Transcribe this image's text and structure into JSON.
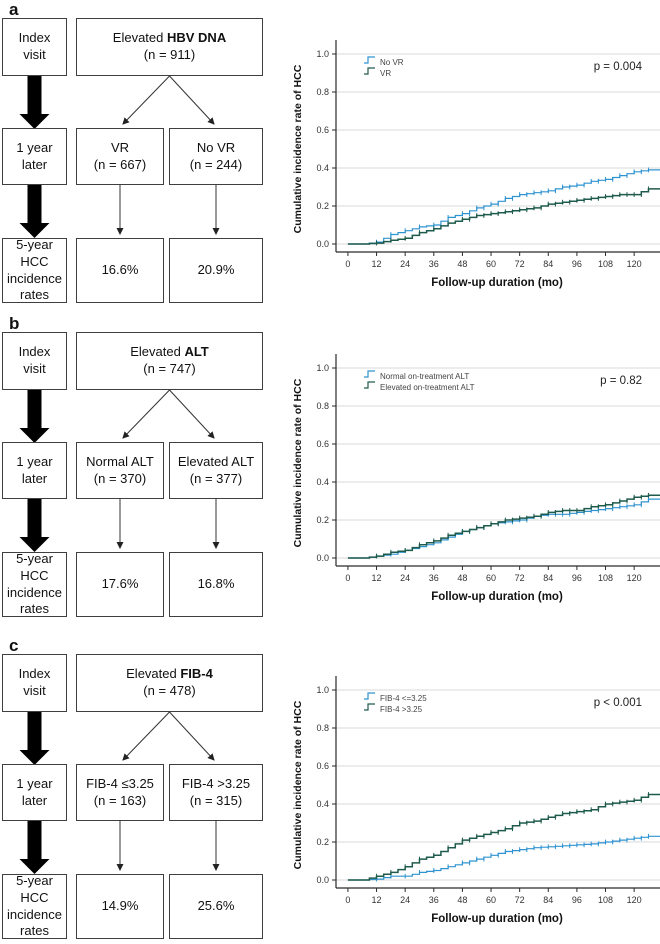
{
  "figure_background": "#ffffff",
  "colors": {
    "curve_blue": "#2f93d2",
    "curve_green": "#1e5b4c",
    "gridline": "#d9d9d9",
    "axis": "#2a2a2a",
    "box_border": "#3f3f3f",
    "arrow_black": "#000000"
  },
  "panels": [
    {
      "label": "a",
      "flowchart": {
        "index_visit": "Index\nvisit",
        "one_year_later": "1 year\nlater",
        "outcome_label": "5-year\nHCC\nincidence\nrates",
        "top_box": {
          "prefix": "Elevated ",
          "bold": "HBV DNA",
          "n": "(n = 911)"
        },
        "left_branch": {
          "title": "VR",
          "n": "(n = 667)"
        },
        "right_branch": {
          "title": "No VR",
          "n": "(n = 244)"
        },
        "left_rate": "16.6%",
        "right_rate": "20.9%"
      }
    },
    {
      "label": "b",
      "flowchart": {
        "index_visit": "Index\nvisit",
        "one_year_later": "1 year\nlater",
        "outcome_label": "5-year\nHCC\nincidence\nrates",
        "top_box": {
          "prefix": "Elevated ",
          "bold": "ALT",
          "n": "(n = 747)"
        },
        "left_branch": {
          "title": "Normal ALT",
          "n": "(n = 370)"
        },
        "right_branch": {
          "title": "Elevated ALT",
          "n": "(n = 377)"
        },
        "left_rate": "17.6%",
        "right_rate": "16.8%"
      }
    },
    {
      "label": "c",
      "flowchart": {
        "index_visit": "Index\nvisit",
        "one_year_later": "1 year\nlater",
        "outcome_label": "5-year\nHCC\nincidence\nrates",
        "top_box": {
          "prefix": "Elevated ",
          "bold": "FIB-4",
          "n": "(n = 478)"
        },
        "left_branch": {
          "title": "FIB-4 ≤3.25",
          "n": "(n = 163)"
        },
        "right_branch": {
          "title": "FIB-4 >3.25",
          "n": "(n = 315)"
        },
        "left_rate": "14.9%",
        "right_rate": "25.6%"
      }
    }
  ],
  "chart_data": [
    {
      "type": "line",
      "subtype": "kaplan-meier-cumulative-incidence",
      "p_value_label": "p = 0.004",
      "xlabel": "Follow-up duration (mo)",
      "ylabel": "Cumulative incidence rate of HCC",
      "xlim": [
        -5,
        130
      ],
      "ylim": [
        0,
        1
      ],
      "xticks": [
        0,
        12,
        24,
        36,
        48,
        60,
        72,
        84,
        96,
        108,
        120
      ],
      "yticks": [
        0.0,
        0.2,
        0.4,
        0.6,
        0.8,
        1.0
      ],
      "grid": "horizontal",
      "legend_position": "upper-left-inside",
      "x": [
        0,
        6,
        12,
        18,
        24,
        30,
        36,
        42,
        48,
        54,
        60,
        66,
        72,
        78,
        84,
        90,
        96,
        102,
        108,
        114,
        120,
        126
      ],
      "series": [
        {
          "name": "No VR",
          "color": "#2f93d2",
          "values": [
            0,
            0,
            0.01,
            0.05,
            0.07,
            0.09,
            0.1,
            0.14,
            0.16,
            0.19,
            0.21,
            0.24,
            0.26,
            0.27,
            0.28,
            0.3,
            0.31,
            0.33,
            0.34,
            0.36,
            0.38,
            0.39
          ]
        },
        {
          "name": "VR",
          "color": "#1e5b4c",
          "values": [
            0,
            0,
            0.005,
            0.02,
            0.03,
            0.06,
            0.08,
            0.11,
            0.13,
            0.15,
            0.16,
            0.17,
            0.18,
            0.19,
            0.21,
            0.22,
            0.23,
            0.24,
            0.25,
            0.26,
            0.26,
            0.29
          ]
        }
      ]
    },
    {
      "type": "line",
      "subtype": "kaplan-meier-cumulative-incidence",
      "p_value_label": "p = 0.82",
      "xlabel": "Follow-up duration (mo)",
      "ylabel": "Cumulative incidence rate of HCC",
      "xlim": [
        -5,
        130
      ],
      "ylim": [
        0,
        1
      ],
      "xticks": [
        0,
        12,
        24,
        36,
        48,
        60,
        72,
        84,
        96,
        108,
        120
      ],
      "yticks": [
        0.0,
        0.2,
        0.4,
        0.6,
        0.8,
        1.0
      ],
      "grid": "horizontal",
      "legend_position": "upper-left-inside",
      "x": [
        0,
        6,
        12,
        18,
        24,
        30,
        36,
        42,
        48,
        54,
        60,
        66,
        72,
        78,
        84,
        90,
        96,
        102,
        108,
        114,
        120,
        126
      ],
      "series": [
        {
          "name": "Normal on-treatment ALT",
          "color": "#2f93d2",
          "values": [
            0,
            0,
            0.01,
            0.02,
            0.04,
            0.06,
            0.08,
            0.11,
            0.14,
            0.16,
            0.18,
            0.19,
            0.2,
            0.22,
            0.23,
            0.23,
            0.24,
            0.25,
            0.26,
            0.27,
            0.28,
            0.31
          ]
        },
        {
          "name": "Elevated on-treatment ALT",
          "color": "#1e5b4c",
          "values": [
            0,
            0,
            0.01,
            0.03,
            0.04,
            0.07,
            0.09,
            0.12,
            0.14,
            0.16,
            0.18,
            0.2,
            0.21,
            0.22,
            0.24,
            0.25,
            0.25,
            0.27,
            0.28,
            0.3,
            0.32,
            0.33
          ]
        }
      ]
    },
    {
      "type": "line",
      "subtype": "kaplan-meier-cumulative-incidence",
      "p_value_label": "p < 0.001",
      "xlabel": "Follow-up duration (mo)",
      "ylabel": "Cumulative incidence rate of HCC",
      "xlim": [
        -5,
        130
      ],
      "ylim": [
        0,
        1
      ],
      "xticks": [
        0,
        12,
        24,
        36,
        48,
        60,
        72,
        84,
        96,
        108,
        120
      ],
      "yticks": [
        0.0,
        0.2,
        0.4,
        0.6,
        0.8,
        1.0
      ],
      "grid": "horizontal",
      "legend_position": "upper-left-inside",
      "x": [
        0,
        6,
        12,
        18,
        24,
        30,
        36,
        42,
        48,
        54,
        60,
        66,
        72,
        78,
        84,
        90,
        96,
        102,
        108,
        114,
        120,
        126
      ],
      "series": [
        {
          "name": "FIB-4 <=3.25",
          "color": "#2f93d2",
          "values": [
            0,
            0,
            0.005,
            0.02,
            0.02,
            0.04,
            0.05,
            0.07,
            0.09,
            0.11,
            0.13,
            0.15,
            0.16,
            0.17,
            0.175,
            0.18,
            0.185,
            0.19,
            0.2,
            0.21,
            0.22,
            0.23
          ]
        },
        {
          "name": "FIB-4 >3.25",
          "color": "#1e5b4c",
          "values": [
            0,
            0,
            0.02,
            0.04,
            0.07,
            0.11,
            0.13,
            0.17,
            0.21,
            0.23,
            0.25,
            0.27,
            0.3,
            0.31,
            0.33,
            0.35,
            0.36,
            0.37,
            0.4,
            0.41,
            0.42,
            0.45
          ]
        }
      ]
    }
  ]
}
